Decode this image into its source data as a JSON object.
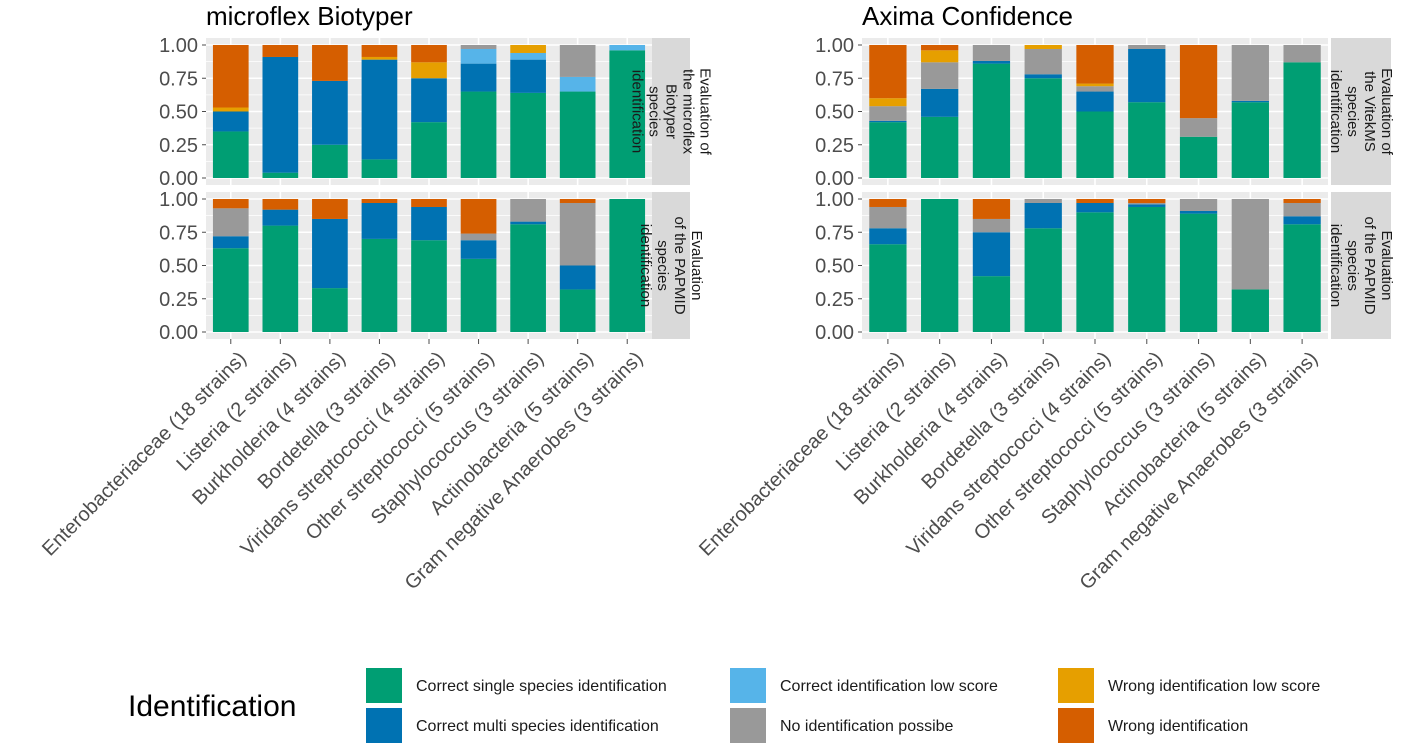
{
  "chart_data": {
    "type": "bar",
    "stacked": true,
    "ylim": [
      0,
      1
    ],
    "yticks": [
      "0.00",
      "0.25",
      "0.50",
      "0.75",
      "1.00"
    ],
    "legend": {
      "title": "Identification",
      "position": "bottom"
    },
    "series": [
      {
        "name": "Correct single species identification",
        "color": "#009E73"
      },
      {
        "name": "Correct multi species identification",
        "color": "#0072B2"
      },
      {
        "name": "Correct identification low score",
        "color": "#56B4E9"
      },
      {
        "name": "No identification possibe",
        "color": "#999999"
      },
      {
        "name": "Wrong identification low score",
        "color": "#E69F00"
      },
      {
        "name": "Wrong identification",
        "color": "#D55E00"
      }
    ],
    "charts": [
      {
        "title": "microflex Biotyper",
        "categories": [
          "Enterobacteriaceae (18 strains)",
          "Listeria (2 strains)",
          "Burkholderia (4 strains)",
          "Bordetella (3 strains)",
          "Viridans streptococci (4 strains)",
          "Other streptococci (5 strains)",
          "Staphylococcus (3 strains)",
          "Actinobacteria (5 strains)",
          "Gram negative Anaerobes (3 strains)"
        ],
        "facets": [
          {
            "strip_lines": [
              "Evaluation of",
              "the microflex",
              "Biotyper",
              "species",
              "identification"
            ],
            "values": [
              [
                0.35,
                0.15,
                0.0,
                0.0,
                0.03,
                0.47
              ],
              [
                0.04,
                0.87,
                0.0,
                0.0,
                0.0,
                0.09
              ],
              [
                0.25,
                0.48,
                0.0,
                0.0,
                0.0,
                0.27
              ],
              [
                0.14,
                0.75,
                0.0,
                0.0,
                0.02,
                0.09
              ],
              [
                0.42,
                0.33,
                0.0,
                0.0,
                0.12,
                0.13
              ],
              [
                0.65,
                0.21,
                0.11,
                0.03,
                0.0,
                0.0
              ],
              [
                0.64,
                0.25,
                0.05,
                0.0,
                0.06,
                0.0
              ],
              [
                0.65,
                0.0,
                0.11,
                0.24,
                0.0,
                0.0
              ],
              [
                0.96,
                0.0,
                0.04,
                0.0,
                0.0,
                0.0
              ]
            ]
          },
          {
            "strip_lines": [
              "Evaluation",
              "of the PAPMID",
              "species",
              "identification"
            ],
            "values": [
              [
                0.63,
                0.09,
                0.0,
                0.21,
                0.0,
                0.07
              ],
              [
                0.8,
                0.12,
                0.0,
                0.0,
                0.0,
                0.08
              ],
              [
                0.33,
                0.52,
                0.0,
                0.0,
                0.0,
                0.15
              ],
              [
                0.7,
                0.27,
                0.0,
                0.0,
                0.0,
                0.03
              ],
              [
                0.69,
                0.25,
                0.0,
                0.0,
                0.0,
                0.06
              ],
              [
                0.55,
                0.14,
                0.0,
                0.05,
                0.0,
                0.26
              ],
              [
                0.81,
                0.02,
                0.0,
                0.17,
                0.0,
                0.0
              ],
              [
                0.32,
                0.18,
                0.0,
                0.47,
                0.0,
                0.03
              ],
              [
                1.0,
                0.0,
                0.0,
                0.0,
                0.0,
                0.0
              ]
            ]
          }
        ]
      },
      {
        "title": "Axima Confidence",
        "categories": [
          "Enterobacteriaceae (18 strains)",
          "Listeria (2 strains)",
          "Burkholderia (4 strains)",
          "Bordetella (3 strains)",
          "Viridans streptococci (4 strains)",
          "Other streptococci (5 strains)",
          "Staphylococcus (3 strains)",
          "Actinobacteria (5 strains)",
          "Gram negative Anaerobes (3 strains)"
        ],
        "facets": [
          {
            "strip_lines": [
              "Evaluation of",
              "the VitekMS",
              "species",
              "identification"
            ],
            "values": [
              [
                0.42,
                0.01,
                0.0,
                0.11,
                0.06,
                0.4
              ],
              [
                0.46,
                0.21,
                0.0,
                0.2,
                0.09,
                0.04
              ],
              [
                0.86,
                0.02,
                0.0,
                0.12,
                0.0,
                0.0
              ],
              [
                0.75,
                0.03,
                0.0,
                0.19,
                0.03,
                0.0
              ],
              [
                0.5,
                0.15,
                0.0,
                0.04,
                0.02,
                0.29
              ],
              [
                0.57,
                0.4,
                0.0,
                0.03,
                0.0,
                0.0
              ],
              [
                0.31,
                0.0,
                0.0,
                0.14,
                0.0,
                0.55
              ],
              [
                0.57,
                0.01,
                0.0,
                0.42,
                0.0,
                0.0
              ],
              [
                0.87,
                0.0,
                0.0,
                0.13,
                0.0,
                0.0
              ]
            ]
          },
          {
            "strip_lines": [
              "Evaluation",
              "of the PAPMID",
              "species",
              "identification"
            ],
            "values": [
              [
                0.66,
                0.12,
                0.0,
                0.16,
                0.0,
                0.06
              ],
              [
                1.0,
                0.0,
                0.0,
                0.0,
                0.0,
                0.0
              ],
              [
                0.42,
                0.33,
                0.0,
                0.1,
                0.0,
                0.15
              ],
              [
                0.78,
                0.19,
                0.0,
                0.03,
                0.0,
                0.0
              ],
              [
                0.9,
                0.07,
                0.0,
                0.0,
                0.0,
                0.03
              ],
              [
                0.94,
                0.02,
                0.0,
                0.01,
                0.0,
                0.03
              ],
              [
                0.89,
                0.02,
                0.0,
                0.09,
                0.0,
                0.0
              ],
              [
                0.32,
                0.0,
                0.0,
                0.68,
                0.0,
                0.0
              ],
              [
                0.81,
                0.06,
                0.0,
                0.1,
                0.0,
                0.03
              ]
            ]
          }
        ]
      }
    ]
  }
}
